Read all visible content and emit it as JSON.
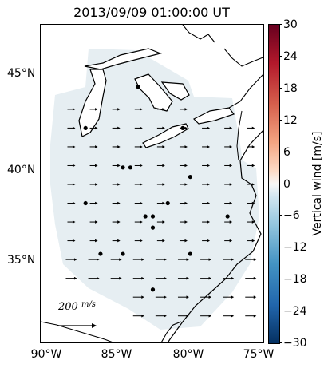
{
  "title": "2013/09/09 01:00:00 UT",
  "map": {
    "projection": "cylindrical",
    "extent": {
      "lon_min": -90,
      "lon_max": -75,
      "lat_min": 30.5,
      "lat_max": 47.5
    },
    "lat_ticks": [
      "35°N",
      "40°N",
      "45°N"
    ],
    "lon_ticks": [
      "90°W",
      "85°W",
      "80°W",
      "75°W"
    ],
    "domain_shade_color": "#e6eef2",
    "coastline_color": "#000000"
  },
  "colorbar": {
    "label": "Vertical wind [m/s]",
    "ticks": [
      "30",
      "24",
      "18",
      "12",
      "6",
      "0",
      "−6",
      "−12",
      "−18",
      "−24",
      "−30"
    ],
    "min": -30,
    "max": 30,
    "colormap": "RdBu_r"
  },
  "scale_arrow": {
    "label": "200 m/s",
    "value": 200
  },
  "stations": [
    {
      "lon": -87.0,
      "lat": 42.0
    },
    {
      "lon": -83.5,
      "lat": 44.2
    },
    {
      "lon": -80.5,
      "lat": 42.0
    },
    {
      "lon": -84.5,
      "lat": 39.9
    },
    {
      "lon": -84.0,
      "lat": 39.9
    },
    {
      "lon": -80.0,
      "lat": 39.4
    },
    {
      "lon": -87.0,
      "lat": 38.0
    },
    {
      "lon": -83.0,
      "lat": 37.3
    },
    {
      "lon": -82.5,
      "lat": 37.3
    },
    {
      "lon": -81.5,
      "lat": 38.0
    },
    {
      "lon": -77.5,
      "lat": 37.3
    },
    {
      "lon": -82.5,
      "lat": 36.7
    },
    {
      "lon": -86.0,
      "lat": 35.3
    },
    {
      "lon": -84.5,
      "lat": 35.3
    },
    {
      "lon": -80.0,
      "lat": 35.3
    },
    {
      "lon": -82.5,
      "lat": 33.4
    }
  ]
}
